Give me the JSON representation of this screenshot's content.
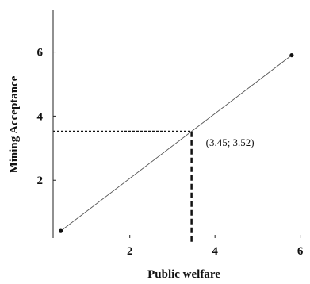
{
  "chart_data": {
    "type": "line",
    "title": "",
    "xlabel": "Public welfare",
    "ylabel": "Mining Acceptance",
    "xlim": [
      0.2,
      6.1
    ],
    "ylim": [
      0.2,
      7.3
    ],
    "xticks": [
      2,
      4,
      6
    ],
    "xtick_labels": [
      "2",
      "4",
      "6"
    ],
    "yticks": [
      2,
      4,
      6
    ],
    "ytick_labels": [
      "2",
      "4",
      "6"
    ],
    "grid": false,
    "series": [
      {
        "x": [
          0.38,
          5.8
        ],
        "y": [
          0.42,
          5.9
        ],
        "color": "#555555"
      }
    ],
    "reference_point": {
      "x": 3.45,
      "y": 3.52
    },
    "annotations": [
      {
        "text": "(3.45; 3.52)",
        "x": 3.45,
        "y": 3.52
      }
    ]
  }
}
